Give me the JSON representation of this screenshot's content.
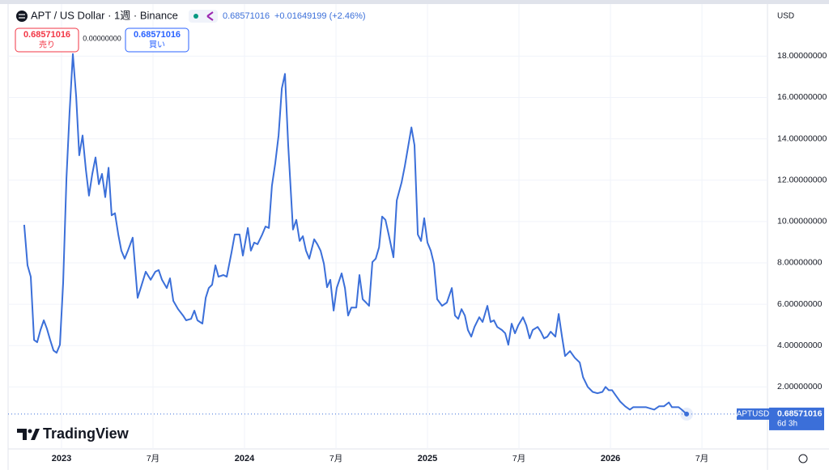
{
  "chart_data": {
    "type": "line",
    "symbol": "APT / US Dollar · 1週 · Binance",
    "last": "0.68571016",
    "change": "+0.01649199 (+2.46%)",
    "sell": {
      "price": "0.68571016",
      "label": "売り"
    },
    "spread": "0.00000000",
    "buy": {
      "price": "0.68571016",
      "label": "買い"
    },
    "currency": "USD",
    "logo": "TradingView",
    "price_label": {
      "symbol": "APTUSD",
      "price": "0.68571016",
      "countdown": "6d 3h"
    },
    "color": "#3b6fd9",
    "grid": true,
    "xlim": [
      2022.708,
      2026.858
    ],
    "xticks": [
      {
        "value": 2023,
        "label": "2023"
      },
      {
        "value": 2023.5,
        "label": "7月"
      },
      {
        "value": 2024,
        "label": "2024"
      },
      {
        "value": 2024.5,
        "label": "7月"
      },
      {
        "value": 2025,
        "label": "2025"
      },
      {
        "value": 2025.5,
        "label": "7月"
      },
      {
        "value": 2026,
        "label": "2026"
      },
      {
        "value": 2026.5,
        "label": "7月"
      }
    ],
    "ylim": [
      -1,
      20.4
    ],
    "yticks": [
      {
        "value": 2,
        "label": "2.00000000"
      },
      {
        "value": 4,
        "label": "4.00000000"
      },
      {
        "value": 6,
        "label": "6.00000000"
      },
      {
        "value": 8,
        "label": "8.00000000"
      },
      {
        "value": 10,
        "label": "10.00000000"
      },
      {
        "value": 12,
        "label": "12.00000000"
      },
      {
        "value": 14,
        "label": "14.00000000"
      },
      {
        "value": 16,
        "label": "16.00000000"
      },
      {
        "value": 18,
        "label": "18.00000000"
      }
    ],
    "x": [
      2022.796,
      2022.814,
      2022.832,
      2022.85,
      2022.867,
      2022.885,
      2022.903,
      2022.92,
      2022.938,
      2022.956,
      2022.973,
      2022.991,
      2023.009,
      2023.027,
      2023.044,
      2023.062,
      2023.08,
      2023.097,
      2023.115,
      2023.133,
      2023.15,
      2023.168,
      2023.186,
      2023.204,
      2023.221,
      2023.239,
      2023.257,
      2023.274,
      2023.292,
      2023.31,
      2023.327,
      2023.345,
      2023.363,
      2023.389,
      2023.416,
      2023.434,
      2023.46,
      2023.487,
      2023.513,
      2023.531,
      2023.549,
      2023.575,
      2023.593,
      2023.611,
      2023.637,
      2023.664,
      2023.681,
      2023.708,
      2023.726,
      2023.743,
      2023.77,
      2023.788,
      2023.805,
      2023.823,
      2023.841,
      2023.858,
      2023.885,
      2023.903,
      2023.929,
      2023.947,
      2023.973,
      2023.991,
      2024.018,
      2024.035,
      2024.053,
      2024.071,
      2024.097,
      2024.115,
      2024.133,
      2024.15,
      2024.168,
      2024.186,
      2024.204,
      2024.221,
      2024.239,
      2024.265,
      2024.283,
      2024.301,
      2024.319,
      2024.336,
      2024.354,
      2024.381,
      2024.398,
      2024.416,
      2024.434,
      2024.451,
      2024.469,
      2024.487,
      2024.504,
      2024.531,
      2024.549,
      2024.566,
      2024.584,
      2024.611,
      2024.628,
      2024.646,
      2024.664,
      2024.681,
      2024.699,
      2024.717,
      2024.735,
      2024.752,
      2024.77,
      2024.788,
      2024.814,
      2024.832,
      2024.858,
      2024.876,
      2024.894,
      2024.912,
      2024.929,
      2024.947,
      2024.965,
      2024.982,
      2025.0,
      2025.018,
      2025.035,
      2025.053,
      2025.08,
      2025.106,
      2025.133,
      2025.15,
      2025.168,
      2025.186,
      2025.204,
      2025.221,
      2025.239,
      2025.257,
      2025.283,
      2025.301,
      2025.327,
      2025.345,
      2025.363,
      2025.381,
      2025.407,
      2025.425,
      2025.442,
      2025.46,
      2025.478,
      2025.496,
      2025.522,
      2025.54,
      2025.558,
      2025.575,
      2025.602,
      2025.619,
      2025.637,
      2025.655,
      2025.673,
      2025.699,
      2025.717,
      2025.735,
      2025.752,
      2025.779,
      2025.805,
      2025.832,
      2025.85,
      2025.876,
      2025.903,
      2025.929,
      2025.956,
      2025.973,
      2025.991,
      2026.009,
      2026.027,
      2026.053,
      2026.08,
      2026.106,
      2026.124,
      2026.159,
      2026.195,
      2026.239,
      2026.265,
      2026.292,
      2026.319,
      2026.336,
      2026.372,
      2026.389,
      2026.416
    ],
    "values": [
      9.84,
      7.88,
      7.33,
      4.27,
      4.16,
      4.75,
      5.22,
      4.82,
      4.27,
      3.76,
      3.65,
      4.04,
      7.02,
      12.1,
      15.25,
      18.1,
      16.04,
      13.2,
      14.16,
      12.5,
      11.25,
      12.3,
      13.1,
      11.8,
      12.3,
      11.18,
      12.6,
      10.3,
      10.4,
      9.37,
      8.59,
      8.2,
      8.59,
      9.22,
      6.31,
      6.82,
      7.57,
      7.18,
      7.57,
      7.65,
      7.18,
      6.78,
      7.25,
      6.16,
      5.76,
      5.45,
      5.22,
      5.29,
      5.69,
      5.22,
      5.06,
      6.31,
      6.78,
      6.94,
      7.88,
      7.33,
      7.41,
      7.33,
      8.51,
      9.37,
      9.37,
      8.35,
      9.69,
      8.59,
      8.98,
      8.9,
      9.37,
      9.76,
      9.69,
      11.73,
      12.82,
      14.16,
      16.43,
      17.14,
      13.69,
      9.61,
      10.08,
      9.06,
      9.29,
      8.59,
      8.2,
      9.14,
      8.9,
      8.59,
      7.96,
      6.82,
      7.18,
      5.69,
      6.78,
      7.49,
      6.78,
      5.45,
      5.84,
      5.84,
      7.41,
      6.24,
      6.08,
      5.92,
      8.04,
      8.2,
      8.75,
      10.24,
      10.08,
      9.37,
      8.27,
      11.02,
      11.88,
      12.67,
      13.61,
      14.55,
      13.69,
      9.37,
      9.06,
      10.16,
      8.98,
      8.59,
      7.96,
      6.24,
      5.92,
      6.08,
      6.78,
      5.45,
      5.29,
      5.76,
      5.45,
      4.75,
      4.43,
      4.9,
      5.37,
      5.14,
      5.92,
      5.14,
      5.22,
      4.9,
      4.75,
      4.59,
      4.04,
      5.06,
      4.59,
      4.98,
      5.37,
      4.98,
      4.35,
      4.75,
      4.9,
      4.67,
      4.35,
      4.43,
      4.67,
      4.43,
      5.53,
      4.43,
      3.49,
      3.73,
      3.41,
      3.18,
      2.47,
      2.0,
      1.76,
      1.69,
      1.76,
      2.0,
      1.84,
      1.84,
      1.61,
      1.29,
      1.06,
      0.9,
      1.02,
      1.02,
      1.02,
      0.9,
      1.06,
      1.06,
      1.25,
      1.02,
      1.02,
      0.9,
      0.68571016
    ]
  }
}
